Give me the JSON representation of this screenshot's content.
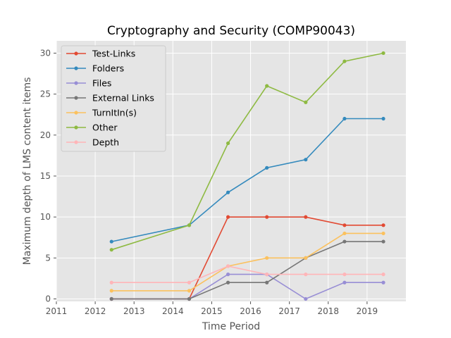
{
  "chart_data": {
    "type": "line",
    "title": "Cryptography and Security (COMP90043)",
    "xlabel": "Time Period",
    "ylabel": "Maximum depth of LMS content items",
    "xlim": [
      2011.0,
      2020.0
    ],
    "ylim": [
      -0.3,
      31.5
    ],
    "xticks": [
      "2011",
      "2012",
      "2013",
      "2014",
      "2015",
      "2016",
      "2017",
      "2018",
      "2019"
    ],
    "yticks": [
      "0",
      "5",
      "10",
      "15",
      "20",
      "25",
      "30"
    ],
    "grid": true,
    "legend_position": "top-left",
    "background": "#e5e5e5",
    "series": [
      {
        "name": "Test-Links",
        "color": "#e24a33",
        "x": [
          2012.42,
          2014.42,
          2015.42,
          2016.42,
          2017.42,
          2018.42,
          2019.42
        ],
        "y": [
          0,
          0,
          10,
          10,
          10,
          9,
          9
        ]
      },
      {
        "name": "Folders",
        "color": "#348abd",
        "x": [
          2012.42,
          2014.42,
          2015.42,
          2016.42,
          2017.42,
          2018.42,
          2019.42
        ],
        "y": [
          7,
          9,
          13,
          16,
          17,
          22,
          22
        ]
      },
      {
        "name": "Files",
        "color": "#988ed5",
        "x": [
          2012.42,
          2014.42,
          2015.42,
          2016.42,
          2017.42,
          2018.42,
          2019.42
        ],
        "y": [
          0,
          0,
          3,
          3,
          0,
          2,
          2
        ]
      },
      {
        "name": "External Links",
        "color": "#777777",
        "x": [
          2012.42,
          2014.42,
          2015.42,
          2016.42,
          2017.42,
          2018.42,
          2019.42
        ],
        "y": [
          0,
          0,
          2,
          2,
          5,
          7,
          7
        ]
      },
      {
        "name": "TurnItIn(s)",
        "color": "#fbc15e",
        "x": [
          2012.42,
          2014.42,
          2015.42,
          2016.42,
          2017.42,
          2018.42,
          2019.42
        ],
        "y": [
          1,
          1,
          4,
          5,
          5,
          8,
          8
        ]
      },
      {
        "name": "Other",
        "color": "#8eba42",
        "x": [
          2012.42,
          2014.42,
          2015.42,
          2016.42,
          2017.42,
          2018.42,
          2019.42
        ],
        "y": [
          6,
          9,
          19,
          26,
          24,
          29,
          30
        ]
      },
      {
        "name": "Depth",
        "color": "#ffb5b8",
        "x": [
          2012.42,
          2014.42,
          2015.42,
          2016.42,
          2017.42,
          2018.42,
          2019.42
        ],
        "y": [
          2,
          2,
          4,
          3,
          3,
          3,
          3
        ]
      }
    ]
  }
}
